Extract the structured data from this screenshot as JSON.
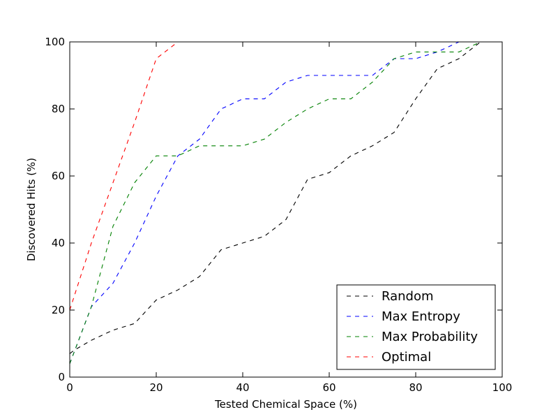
{
  "chart_data": {
    "type": "line",
    "title": "",
    "xlabel": "Tested Chemical Space (%)",
    "ylabel": "Discovered Hits (%)",
    "xlim": [
      0,
      100
    ],
    "ylim": [
      0,
      100
    ],
    "x_ticks": [
      0,
      20,
      40,
      60,
      80,
      100
    ],
    "y_ticks": [
      0,
      20,
      40,
      60,
      80,
      100
    ],
    "x_tick_labels": [
      "0",
      "20",
      "40",
      "60",
      "80",
      "100"
    ],
    "y_tick_labels": [
      "0",
      "20",
      "40",
      "60",
      "80",
      "100"
    ],
    "grid": false,
    "line_style": "dashed",
    "legend": {
      "position": "lower-right"
    },
    "series": [
      {
        "name": "Random",
        "color": "#000000",
        "x": [
          0,
          1,
          5,
          10,
          15,
          20,
          25,
          30,
          35,
          40,
          45,
          50,
          55,
          60,
          65,
          70,
          75,
          80,
          85,
          90,
          95
        ],
        "y": [
          7,
          8,
          11,
          14,
          16,
          23,
          26,
          30,
          38,
          40,
          42,
          47,
          59,
          61,
          66,
          69,
          73,
          83,
          92,
          95,
          100
        ]
      },
      {
        "name": "Max Entropy",
        "color": "#0000ff",
        "x": [
          0,
          5,
          10,
          15,
          20,
          25,
          30,
          35,
          40,
          45,
          50,
          55,
          60,
          65,
          70,
          75,
          80,
          85,
          90,
          95
        ],
        "y": [
          4,
          21,
          28,
          40,
          54,
          66,
          71,
          80,
          83,
          83,
          88,
          90,
          90,
          90,
          90,
          95,
          95,
          97,
          100,
          100
        ]
      },
      {
        "name": "Max Probability",
        "color": "#008000",
        "x": [
          0,
          5,
          10,
          15,
          20,
          25,
          30,
          35,
          40,
          45,
          50,
          55,
          60,
          65,
          70,
          75,
          80,
          85,
          90,
          95
        ],
        "y": [
          4,
          21,
          45,
          58,
          66,
          66,
          69,
          69,
          69,
          71,
          76,
          80,
          83,
          83,
          88,
          95,
          97,
          97,
          97,
          100
        ]
      },
      {
        "name": "Optimal",
        "color": "#ff0000",
        "x": [
          0,
          5,
          10,
          15,
          20,
          25
        ],
        "y": [
          20,
          40,
          58,
          76,
          95,
          100
        ]
      }
    ]
  }
}
